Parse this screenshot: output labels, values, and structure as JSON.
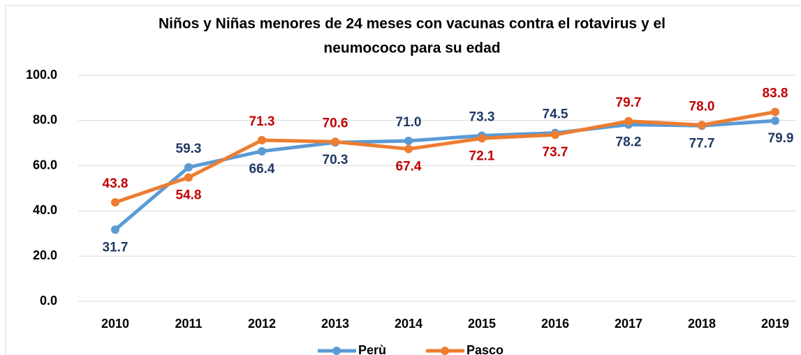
{
  "chart_data": {
    "type": "line",
    "title": [
      "Niños y Niñas menores de 24 meses con vacunas contra el rotavirus y el",
      "neumococo para su edad"
    ],
    "categories": [
      "2010",
      "2011",
      "2012",
      "2013",
      "2014",
      "2015",
      "2016",
      "2017",
      "2018",
      "2019"
    ],
    "series": [
      {
        "name": "Perù",
        "color": "#5b9bd5",
        "label_color": "#203864",
        "values": [
          31.7,
          59.3,
          66.4,
          70.3,
          71.0,
          73.3,
          74.5,
          78.2,
          77.7,
          79.9
        ],
        "value_labels": [
          "31.7",
          "59.3",
          "66.4",
          "70.3",
          "71.0",
          "73.3",
          "74.5",
          "78.2",
          "77.7",
          "79.9"
        ]
      },
      {
        "name": "Pasco",
        "color": "#ed7d31",
        "label_color": "#c00000",
        "values": [
          43.8,
          54.8,
          71.3,
          70.6,
          67.4,
          72.1,
          73.7,
          79.7,
          78.0,
          83.8
        ],
        "value_labels": [
          "43.8",
          "54.8",
          "71.3",
          "70.6",
          "67.4",
          "72.1",
          "73.7",
          "79.7",
          "78.0",
          "83.8"
        ]
      }
    ],
    "ylim": [
      0,
      100
    ],
    "yticks": [
      {
        "value": 0,
        "label": "0.0"
      },
      {
        "value": 20,
        "label": "20.0"
      },
      {
        "value": 40,
        "label": "40.0"
      },
      {
        "value": 60,
        "label": "60.0"
      },
      {
        "value": 80,
        "label": "80.0"
      },
      {
        "value": 100,
        "label": "100.0"
      }
    ],
    "grid": true,
    "legend": "bottom"
  }
}
